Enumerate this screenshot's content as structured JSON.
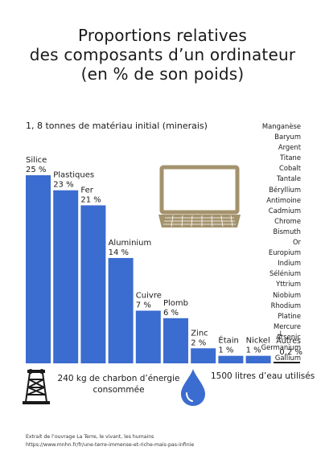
{
  "title": {
    "line1": "Proportions relatives",
    "line2": "des composants d’un ordinateur",
    "line3": "(en % de son poids)"
  },
  "subtitle": "1, 8 tonnes de matériau initial (minerais)",
  "chart_data": {
    "type": "bar",
    "categories": [
      "Silice",
      "Plastiques",
      "Fer",
      "Aluminium",
      "Cuivre",
      "Plomb",
      "Zinc",
      "Étain",
      "Nickel",
      "Autres"
    ],
    "values": [
      25,
      23,
      21,
      14,
      7,
      6,
      2,
      1,
      1,
      0.2
    ],
    "value_labels": [
      "25 %",
      "23 %",
      "21 %",
      "14 %",
      "7 %",
      "6 %",
      "2 %",
      "1 %",
      "1 %",
      "0,2 %"
    ],
    "color": "#3b6cd0",
    "ylim": [
      0,
      25
    ],
    "grid": false,
    "title": "Proportions relatives des composants d’un ordinateur (en % de son poids)"
  },
  "minor_elements": [
    "Manganèse",
    "Baryum",
    "Argent",
    "Titane",
    "Cobalt",
    "Tantale",
    "Béryllium",
    "Antimoine",
    "Cadmium",
    "Chrome",
    "Bismuth",
    "Or",
    "Europium",
    "Indium",
    "Sélénium",
    "Yttrium",
    "Niobium",
    "Rhodium",
    "Platine",
    "Mercure",
    "Arsenic",
    "Germanium",
    "Gallium"
  ],
  "autres": {
    "arrow": "↓",
    "label": "Autres",
    "value": "0,2 %"
  },
  "charcoal": {
    "line1": "240 kg de charbon d’énergie",
    "line2": "consommée"
  },
  "water": {
    "text": "1500 litres d’eau utilisés"
  },
  "footer": {
    "line1": "Extrait de l’ouvrage La Terre, le vivant, les humains",
    "line2": "https://www.mnhn.fr/fr/une-terre-immense-et-riche-mais-pas-infinie"
  },
  "colors": {
    "bar": "#3b6cd0",
    "laptop": "#a3926c",
    "drop": "#3b6cd0",
    "text": "#1a1a1a"
  },
  "icons": [
    "laptop-icon",
    "mine-tower-icon",
    "water-drop-icon"
  ]
}
